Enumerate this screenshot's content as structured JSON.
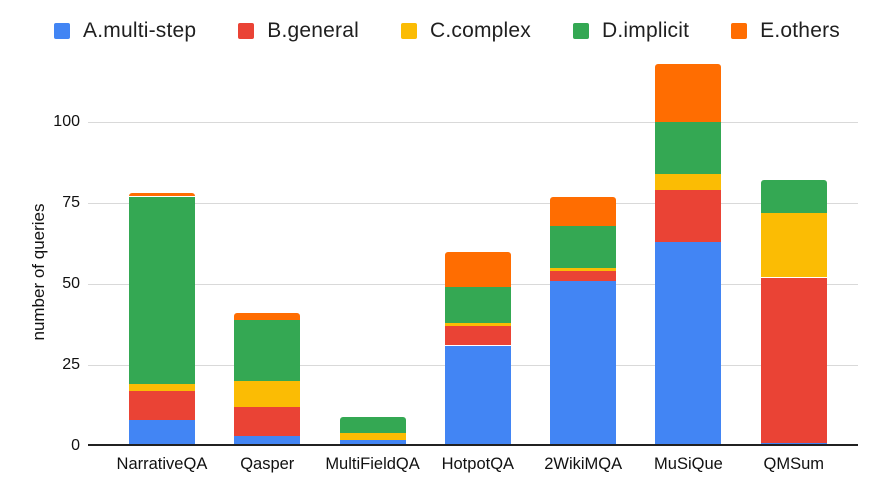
{
  "chart_data": {
    "type": "bar",
    "stacked": true,
    "title": "",
    "categories": [
      "NarrativeQA",
      "Qasper",
      "MultiFieldQA",
      "HotpotQA",
      "2WikiMQA",
      "MuSiQue",
      "QMSum"
    ],
    "series": [
      {
        "name": "A.multi-step",
        "color": "#4285F4",
        "values": [
          8,
          3,
          2,
          31,
          51,
          63,
          1
        ]
      },
      {
        "name": "B.general",
        "color": "#EA4335",
        "values": [
          9,
          9,
          0,
          6,
          3,
          16,
          51
        ]
      },
      {
        "name": "C.complex",
        "color": "#FBBC04",
        "values": [
          2,
          8,
          2,
          1,
          1,
          5,
          20
        ]
      },
      {
        "name": "D.implicit",
        "color": "#34A853",
        "values": [
          58,
          19,
          5,
          11,
          13,
          16,
          10
        ]
      },
      {
        "name": "E.others",
        "color": "#FF6D01",
        "values": [
          1,
          2,
          0,
          11,
          9,
          18,
          0
        ]
      }
    ],
    "totals": [
      78,
      41,
      9,
      60,
      77,
      118,
      82
    ],
    "xlabel": "",
    "ylabel": "number of queries",
    "yticks": [
      0,
      25,
      50,
      75,
      100
    ],
    "ylim": [
      0,
      120
    ],
    "grid": true,
    "legend_position": "top",
    "background_color": "#ffffff",
    "gridline_color": "#d9d9d9",
    "axis_color": "#212121"
  }
}
